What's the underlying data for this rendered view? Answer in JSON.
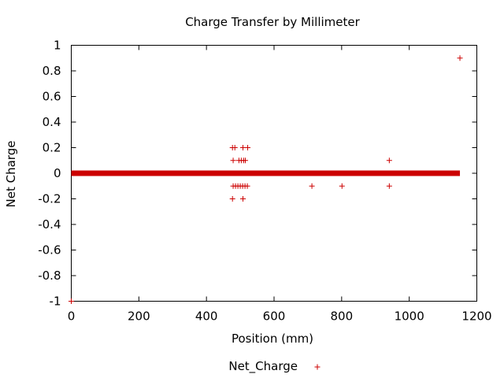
{
  "chart_data": {
    "type": "scatter",
    "title": "Charge Transfer by Millimeter",
    "xlabel": "Position (mm)",
    "ylabel": "Net Charge",
    "xlim": [
      0,
      1200
    ],
    "ylim": [
      -1,
      1
    ],
    "x_ticks": [
      "0",
      "200",
      "400",
      "600",
      "800",
      "1000",
      "1200"
    ],
    "y_ticks": [
      "1",
      "0.8",
      "0.6",
      "0.4",
      "0.2",
      "0",
      "-0.2",
      "-0.4",
      "-0.6",
      "-0.8",
      "-1"
    ],
    "grid": false,
    "legend_position": "bottom-center",
    "color": "#cc0000",
    "series": [
      {
        "name": "Net_Charge",
        "marker": "+",
        "baseline": {
          "y": 0,
          "x_from": 0,
          "x_to": 1150
        },
        "points": [
          {
            "x": 0,
            "y": -1
          },
          {
            "x": 477,
            "y": 0.2
          },
          {
            "x": 484,
            "y": 0.2
          },
          {
            "x": 508,
            "y": 0.2
          },
          {
            "x": 522,
            "y": 0.2
          },
          {
            "x": 479,
            "y": 0.1
          },
          {
            "x": 496,
            "y": 0.1
          },
          {
            "x": 503,
            "y": 0.1
          },
          {
            "x": 510,
            "y": 0.1
          },
          {
            "x": 515,
            "y": 0.1
          },
          {
            "x": 479,
            "y": -0.1
          },
          {
            "x": 486,
            "y": -0.1
          },
          {
            "x": 493,
            "y": -0.1
          },
          {
            "x": 500,
            "y": -0.1
          },
          {
            "x": 507,
            "y": -0.1
          },
          {
            "x": 514,
            "y": -0.1
          },
          {
            "x": 521,
            "y": -0.1
          },
          {
            "x": 477,
            "y": -0.2
          },
          {
            "x": 508,
            "y": -0.2
          },
          {
            "x": 712,
            "y": -0.1
          },
          {
            "x": 801,
            "y": -0.1
          },
          {
            "x": 941,
            "y": 0.1
          },
          {
            "x": 941,
            "y": -0.1
          },
          {
            "x": 1150,
            "y": 0.9
          }
        ]
      }
    ]
  }
}
